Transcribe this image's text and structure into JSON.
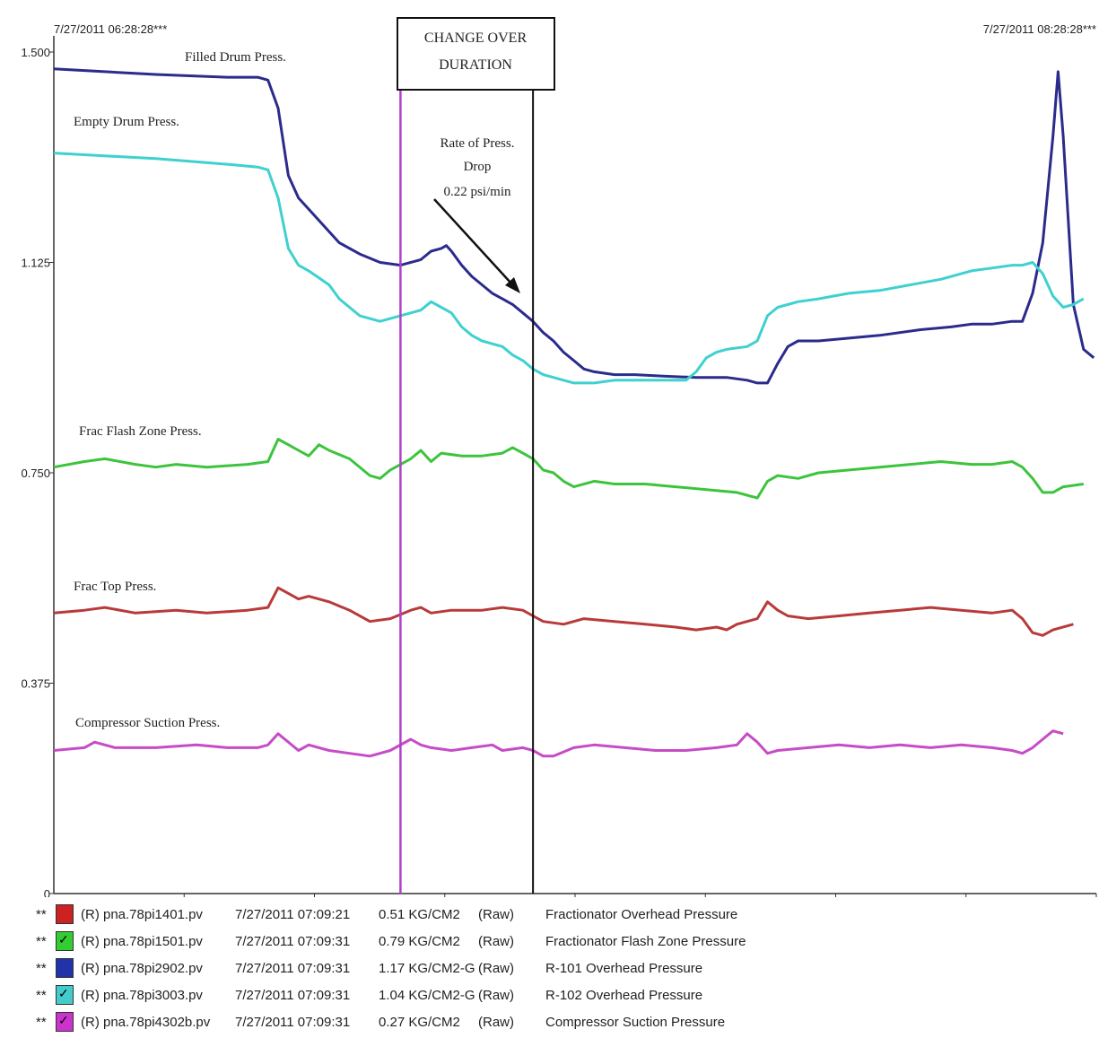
{
  "chart_data": {
    "type": "line",
    "ylim": [
      0,
      1.5
    ],
    "y_ticks": [
      "1.500",
      "1.125",
      "0.750",
      "0.375",
      "0"
    ],
    "start_time_label": "7/27/2011 06:28:28***",
    "end_time_label": "7/27/2011 08:28:28***",
    "x_domain": [
      0,
      100
    ],
    "change_over_box": [
      "CHANGE OVER",
      "DURATION"
    ],
    "change_over_start_x": 34,
    "change_over_end_x": 47,
    "rate_annotation": [
      "Rate of Press.",
      "Drop",
      "0.22 psi/min"
    ],
    "grid": false,
    "series": [
      {
        "label": "Filled Drum Press.",
        "color": "#2b2b8c",
        "points": [
          [
            0,
            1.47
          ],
          [
            5,
            1.465
          ],
          [
            10,
            1.46
          ],
          [
            17,
            1.455
          ],
          [
            20,
            1.455
          ],
          [
            21,
            1.45
          ],
          [
            22,
            1.4
          ],
          [
            23,
            1.28
          ],
          [
            24,
            1.24
          ],
          [
            25,
            1.22
          ],
          [
            27,
            1.18
          ],
          [
            28,
            1.16
          ],
          [
            30,
            1.14
          ],
          [
            32,
            1.125
          ],
          [
            34,
            1.12
          ],
          [
            36,
            1.13
          ],
          [
            37,
            1.145
          ],
          [
            38,
            1.15
          ],
          [
            38.5,
            1.155
          ],
          [
            39,
            1.145
          ],
          [
            40,
            1.12
          ],
          [
            41,
            1.1
          ],
          [
            42,
            1.085
          ],
          [
            43,
            1.07
          ],
          [
            44,
            1.06
          ],
          [
            45,
            1.05
          ],
          [
            46,
            1.035
          ],
          [
            47,
            1.02
          ],
          [
            48,
            1.0
          ],
          [
            49,
            0.985
          ],
          [
            50,
            0.965
          ],
          [
            51,
            0.95
          ],
          [
            52,
            0.935
          ],
          [
            53,
            0.93
          ],
          [
            55,
            0.925
          ],
          [
            57,
            0.925
          ],
          [
            60,
            0.922
          ],
          [
            63,
            0.92
          ],
          [
            66,
            0.92
          ],
          [
            68,
            0.915
          ],
          [
            69,
            0.91
          ],
          [
            70,
            0.91
          ],
          [
            71,
            0.945
          ],
          [
            72,
            0.975
          ],
          [
            73,
            0.985
          ],
          [
            75,
            0.985
          ],
          [
            78,
            0.99
          ],
          [
            81,
            0.995
          ],
          [
            85,
            1.005
          ],
          [
            88,
            1.01
          ],
          [
            90,
            1.015
          ],
          [
            92,
            1.015
          ],
          [
            94,
            1.02
          ],
          [
            95,
            1.02
          ],
          [
            96,
            1.07
          ],
          [
            97,
            1.16
          ],
          [
            98,
            1.35
          ],
          [
            98.5,
            1.465
          ],
          [
            99,
            1.35
          ],
          [
            100,
            1.05
          ],
          [
            101,
            0.97
          ],
          [
            102,
            0.955
          ]
        ]
      },
      {
        "label": "Empty Drum Press.",
        "color": "#3fd0d0",
        "points": [
          [
            0,
            1.32
          ],
          [
            5,
            1.315
          ],
          [
            10,
            1.31
          ],
          [
            17,
            1.3
          ],
          [
            20,
            1.295
          ],
          [
            21,
            1.29
          ],
          [
            22,
            1.24
          ],
          [
            23,
            1.15
          ],
          [
            24,
            1.12
          ],
          [
            25,
            1.11
          ],
          [
            27,
            1.085
          ],
          [
            28,
            1.06
          ],
          [
            30,
            1.03
          ],
          [
            32,
            1.02
          ],
          [
            34,
            1.03
          ],
          [
            36,
            1.04
          ],
          [
            37,
            1.055
          ],
          [
            38,
            1.045
          ],
          [
            39,
            1.035
          ],
          [
            40,
            1.01
          ],
          [
            41,
            0.995
          ],
          [
            42,
            0.985
          ],
          [
            44,
            0.975
          ],
          [
            45,
            0.96
          ],
          [
            46,
            0.95
          ],
          [
            47,
            0.935
          ],
          [
            48,
            0.925
          ],
          [
            50,
            0.915
          ],
          [
            51,
            0.91
          ],
          [
            53,
            0.91
          ],
          [
            55,
            0.915
          ],
          [
            57,
            0.915
          ],
          [
            60,
            0.915
          ],
          [
            62,
            0.915
          ],
          [
            63,
            0.93
          ],
          [
            64,
            0.955
          ],
          [
            65,
            0.965
          ],
          [
            66,
            0.97
          ],
          [
            68,
            0.975
          ],
          [
            69,
            0.985
          ],
          [
            70,
            1.03
          ],
          [
            71,
            1.045
          ],
          [
            73,
            1.055
          ],
          [
            75,
            1.06
          ],
          [
            78,
            1.07
          ],
          [
            81,
            1.075
          ],
          [
            84,
            1.085
          ],
          [
            87,
            1.095
          ],
          [
            90,
            1.11
          ],
          [
            92,
            1.115
          ],
          [
            94,
            1.12
          ],
          [
            95,
            1.12
          ],
          [
            96,
            1.125
          ],
          [
            97,
            1.105
          ],
          [
            98,
            1.065
          ],
          [
            99,
            1.045
          ],
          [
            100,
            1.05
          ],
          [
            101,
            1.06
          ]
        ]
      },
      {
        "label": "Frac Flash Zone Press.",
        "color": "#3dc43d",
        "points": [
          [
            0,
            0.76
          ],
          [
            3,
            0.77
          ],
          [
            5,
            0.775
          ],
          [
            8,
            0.765
          ],
          [
            10,
            0.76
          ],
          [
            12,
            0.765
          ],
          [
            15,
            0.76
          ],
          [
            19,
            0.765
          ],
          [
            21,
            0.77
          ],
          [
            22,
            0.81
          ],
          [
            23,
            0.8
          ],
          [
            24,
            0.79
          ],
          [
            25,
            0.78
          ],
          [
            26,
            0.8
          ],
          [
            27,
            0.79
          ],
          [
            29,
            0.775
          ],
          [
            31,
            0.745
          ],
          [
            32,
            0.74
          ],
          [
            33,
            0.755
          ],
          [
            35,
            0.775
          ],
          [
            36,
            0.79
          ],
          [
            37,
            0.77
          ],
          [
            38,
            0.785
          ],
          [
            40,
            0.78
          ],
          [
            42,
            0.78
          ],
          [
            44,
            0.785
          ],
          [
            45,
            0.795
          ],
          [
            46,
            0.785
          ],
          [
            47,
            0.775
          ],
          [
            48,
            0.755
          ],
          [
            49,
            0.75
          ],
          [
            50,
            0.735
          ],
          [
            51,
            0.725
          ],
          [
            53,
            0.735
          ],
          [
            55,
            0.73
          ],
          [
            58,
            0.73
          ],
          [
            61,
            0.725
          ],
          [
            64,
            0.72
          ],
          [
            67,
            0.715
          ],
          [
            68,
            0.71
          ],
          [
            69,
            0.705
          ],
          [
            70,
            0.735
          ],
          [
            71,
            0.745
          ],
          [
            73,
            0.74
          ],
          [
            75,
            0.75
          ],
          [
            78,
            0.755
          ],
          [
            81,
            0.76
          ],
          [
            84,
            0.765
          ],
          [
            87,
            0.77
          ],
          [
            90,
            0.765
          ],
          [
            92,
            0.765
          ],
          [
            94,
            0.77
          ],
          [
            95,
            0.76
          ],
          [
            96,
            0.74
          ],
          [
            97,
            0.715
          ],
          [
            98,
            0.715
          ],
          [
            99,
            0.725
          ],
          [
            101,
            0.73
          ]
        ]
      },
      {
        "label": "Frac Top Press.",
        "color": "#b83a3a",
        "points": [
          [
            0,
            0.5
          ],
          [
            3,
            0.505
          ],
          [
            5,
            0.51
          ],
          [
            8,
            0.5
          ],
          [
            12,
            0.505
          ],
          [
            15,
            0.5
          ],
          [
            19,
            0.505
          ],
          [
            21,
            0.51
          ],
          [
            22,
            0.545
          ],
          [
            23,
            0.535
          ],
          [
            24,
            0.525
          ],
          [
            25,
            0.53
          ],
          [
            27,
            0.52
          ],
          [
            29,
            0.505
          ],
          [
            31,
            0.485
          ],
          [
            33,
            0.49
          ],
          [
            35,
            0.505
          ],
          [
            36,
            0.51
          ],
          [
            37,
            0.5
          ],
          [
            39,
            0.505
          ],
          [
            42,
            0.505
          ],
          [
            44,
            0.51
          ],
          [
            46,
            0.505
          ],
          [
            47,
            0.495
          ],
          [
            48,
            0.485
          ],
          [
            50,
            0.48
          ],
          [
            52,
            0.49
          ],
          [
            55,
            0.485
          ],
          [
            58,
            0.48
          ],
          [
            61,
            0.475
          ],
          [
            63,
            0.47
          ],
          [
            65,
            0.475
          ],
          [
            66,
            0.47
          ],
          [
            67,
            0.48
          ],
          [
            68,
            0.485
          ],
          [
            69,
            0.49
          ],
          [
            70,
            0.52
          ],
          [
            71,
            0.505
          ],
          [
            72,
            0.495
          ],
          [
            74,
            0.49
          ],
          [
            77,
            0.495
          ],
          [
            80,
            0.5
          ],
          [
            83,
            0.505
          ],
          [
            86,
            0.51
          ],
          [
            89,
            0.505
          ],
          [
            92,
            0.5
          ],
          [
            94,
            0.505
          ],
          [
            95,
            0.49
          ],
          [
            96,
            0.465
          ],
          [
            97,
            0.46
          ],
          [
            98,
            0.47
          ],
          [
            100,
            0.48
          ]
        ]
      },
      {
        "label": "Compressor Suction Press.",
        "color": "#c64cc6",
        "points": [
          [
            0,
            0.255
          ],
          [
            3,
            0.26
          ],
          [
            4,
            0.27
          ],
          [
            6,
            0.26
          ],
          [
            10,
            0.26
          ],
          [
            14,
            0.265
          ],
          [
            17,
            0.26
          ],
          [
            20,
            0.26
          ],
          [
            21,
            0.265
          ],
          [
            22,
            0.285
          ],
          [
            23,
            0.27
          ],
          [
            24,
            0.255
          ],
          [
            25,
            0.265
          ],
          [
            27,
            0.255
          ],
          [
            29,
            0.25
          ],
          [
            31,
            0.245
          ],
          [
            33,
            0.255
          ],
          [
            35,
            0.275
          ],
          [
            36,
            0.265
          ],
          [
            37,
            0.26
          ],
          [
            39,
            0.255
          ],
          [
            41,
            0.26
          ],
          [
            43,
            0.265
          ],
          [
            44,
            0.255
          ],
          [
            46,
            0.26
          ],
          [
            47,
            0.255
          ],
          [
            48,
            0.245
          ],
          [
            49,
            0.245
          ],
          [
            51,
            0.26
          ],
          [
            53,
            0.265
          ],
          [
            56,
            0.26
          ],
          [
            59,
            0.255
          ],
          [
            62,
            0.255
          ],
          [
            65,
            0.26
          ],
          [
            67,
            0.265
          ],
          [
            68,
            0.285
          ],
          [
            69,
            0.27
          ],
          [
            70,
            0.25
          ],
          [
            71,
            0.255
          ],
          [
            74,
            0.26
          ],
          [
            77,
            0.265
          ],
          [
            80,
            0.26
          ],
          [
            83,
            0.265
          ],
          [
            86,
            0.26
          ],
          [
            89,
            0.265
          ],
          [
            92,
            0.26
          ],
          [
            94,
            0.255
          ],
          [
            95,
            0.25
          ],
          [
            96,
            0.26
          ],
          [
            97,
            0.275
          ],
          [
            98,
            0.29
          ],
          [
            99,
            0.285
          ]
        ]
      }
    ]
  },
  "legend": [
    {
      "marker": "**",
      "color": "#cc2222",
      "glyph": "",
      "tag": "(R) pna.78pi1401.pv",
      "timestamp": "7/27/2011 07:09:21",
      "value": "0.51 KG/CM2",
      "mode": "(Raw)",
      "description": "Fractionator Overhead Pressure"
    },
    {
      "marker": "**",
      "color": "#33cc33",
      "glyph": "✓",
      "tag": "(R) pna.78pi1501.pv",
      "timestamp": "7/27/2011 07:09:31",
      "value": "0.79 KG/CM2",
      "mode": "(Raw)",
      "description": "Fractionator Flash Zone Pressure"
    },
    {
      "marker": "**",
      "color": "#2233aa",
      "glyph": "",
      "tag": "(R) pna.78pi2902.pv",
      "timestamp": "7/27/2011 07:09:31",
      "value": "1.17 KG/CM2-G",
      "mode": "(Raw)",
      "description": "R-101 Overhead Pressure"
    },
    {
      "marker": "**",
      "color": "#44cccc",
      "glyph": "✓",
      "tag": "(R) pna.78pi3003.pv",
      "timestamp": "7/27/2011 07:09:31",
      "value": "1.04 KG/CM2-G",
      "mode": "(Raw)",
      "description": "R-102 Overhead Pressure"
    },
    {
      "marker": "**",
      "color": "#cc33cc",
      "glyph": "✓",
      "tag": "(R) pna.78pi4302b.pv",
      "timestamp": "7/27/2011 07:09:31",
      "value": "0.27 KG/CM2",
      "mode": "(Raw)",
      "description": "Compressor Suction Pressure"
    }
  ]
}
